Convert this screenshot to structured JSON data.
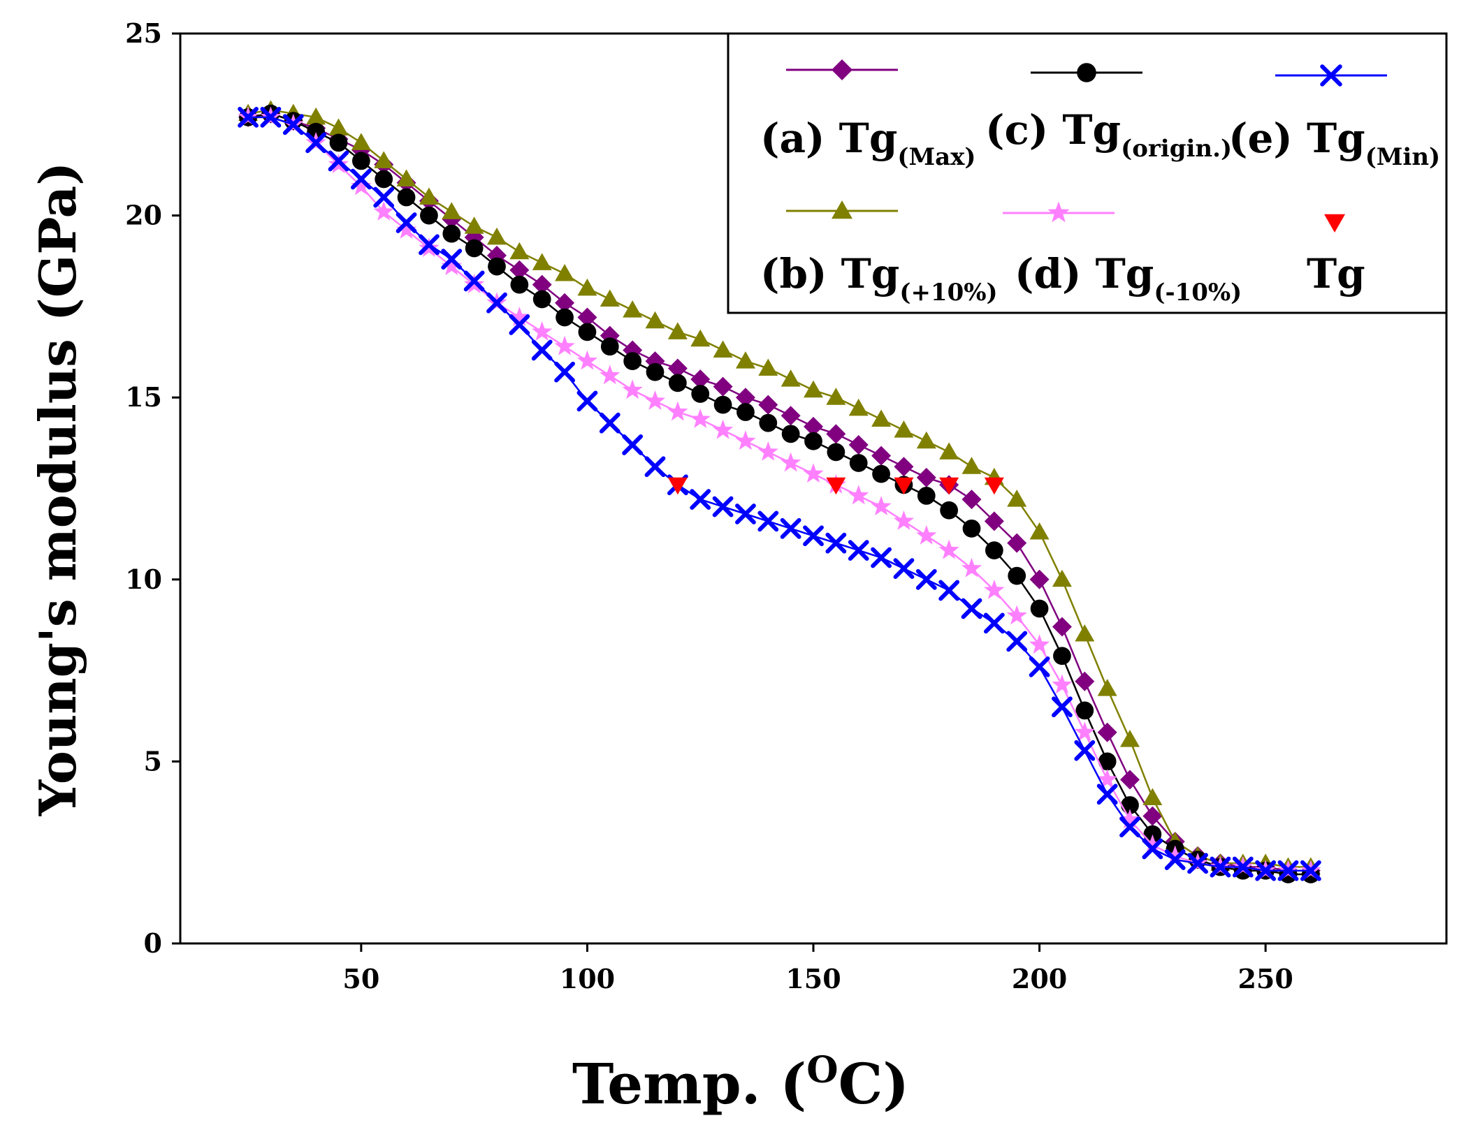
{
  "chart_data": {
    "type": "line",
    "title": "",
    "xlabel_main": "Temp. (",
    "xlabel_sup": "O",
    "xlabel_end": "C)",
    "ylabel": "Young's modulus (GPa)",
    "xlim": [
      10,
      290
    ],
    "ylim": [
      0,
      25
    ],
    "xticks": [
      50,
      100,
      150,
      200,
      250
    ],
    "xtick_labels": [
      "50",
      "100",
      "150",
      "200",
      "250"
    ],
    "yticks": [
      0,
      5,
      10,
      15,
      20,
      25
    ],
    "ytick_labels": [
      "0",
      "5",
      "10",
      "15",
      "20",
      "25"
    ],
    "legend_position": "top-right",
    "series": [
      {
        "name": "(a) Tg(Max)",
        "label_main": "(a) Tg",
        "label_sub": "(Max)",
        "color": "#800080",
        "marker": "diamond",
        "x": [
          25,
          30,
          35,
          40,
          45,
          50,
          55,
          60,
          65,
          70,
          75,
          80,
          85,
          90,
          95,
          100,
          105,
          110,
          115,
          120,
          125,
          130,
          135,
          140,
          145,
          150,
          155,
          160,
          165,
          170,
          175,
          180,
          185,
          190,
          195,
          200,
          205,
          210,
          215,
          220,
          225,
          230,
          235,
          240,
          245,
          250,
          255,
          260
        ],
        "y": [
          22.7,
          22.8,
          22.6,
          22.4,
          22.1,
          21.8,
          21.4,
          20.9,
          20.4,
          19.9,
          19.4,
          18.9,
          18.5,
          18.1,
          17.6,
          17.2,
          16.7,
          16.3,
          16.0,
          15.8,
          15.5,
          15.3,
          15.0,
          14.8,
          14.5,
          14.2,
          14.0,
          13.7,
          13.4,
          13.1,
          12.8,
          12.6,
          12.2,
          11.6,
          11.0,
          10.0,
          8.7,
          7.2,
          5.8,
          4.5,
          3.5,
          2.8,
          2.4,
          2.2,
          2.1,
          2.1,
          2.0,
          2.0
        ]
      },
      {
        "name": "(b) Tg(+10%)",
        "label_main": "(b) Tg",
        "label_sub": "(+10%)",
        "color": "#808000",
        "marker": "triangle-up",
        "x": [
          25,
          30,
          35,
          40,
          45,
          50,
          55,
          60,
          65,
          70,
          75,
          80,
          85,
          90,
          95,
          100,
          105,
          110,
          115,
          120,
          125,
          130,
          135,
          140,
          145,
          150,
          155,
          160,
          165,
          170,
          175,
          180,
          185,
          190,
          195,
          200,
          205,
          210,
          215,
          220,
          225,
          230,
          235,
          240,
          245,
          250,
          255,
          260
        ],
        "y": [
          22.8,
          22.9,
          22.8,
          22.7,
          22.4,
          22.0,
          21.5,
          21.0,
          20.5,
          20.1,
          19.7,
          19.4,
          19.0,
          18.7,
          18.4,
          18.0,
          17.7,
          17.4,
          17.1,
          16.8,
          16.6,
          16.3,
          16.0,
          15.8,
          15.5,
          15.2,
          15.0,
          14.7,
          14.4,
          14.1,
          13.8,
          13.5,
          13.1,
          12.8,
          12.2,
          11.3,
          10.0,
          8.5,
          7.0,
          5.6,
          4.0,
          2.8,
          2.4,
          2.2,
          2.2,
          2.2,
          2.1,
          2.1
        ]
      },
      {
        "name": "(c) Tg(origin.)",
        "label_main": "(c) Tg",
        "label_sub": "(origin.)",
        "color": "#000000",
        "marker": "circle",
        "x": [
          25,
          30,
          35,
          40,
          45,
          50,
          55,
          60,
          65,
          70,
          75,
          80,
          85,
          90,
          95,
          100,
          105,
          110,
          115,
          120,
          125,
          130,
          135,
          140,
          145,
          150,
          155,
          160,
          165,
          170,
          175,
          180,
          185,
          190,
          195,
          200,
          205,
          210,
          215,
          220,
          225,
          230,
          235,
          240,
          245,
          250,
          255,
          260
        ],
        "y": [
          22.7,
          22.8,
          22.6,
          22.3,
          22.0,
          21.5,
          21.0,
          20.5,
          20.0,
          19.5,
          19.1,
          18.6,
          18.1,
          17.7,
          17.2,
          16.8,
          16.4,
          16.0,
          15.7,
          15.4,
          15.1,
          14.8,
          14.6,
          14.3,
          14.0,
          13.8,
          13.5,
          13.2,
          12.9,
          12.6,
          12.3,
          11.9,
          11.4,
          10.8,
          10.1,
          9.2,
          7.9,
          6.4,
          5.0,
          3.8,
          3.0,
          2.6,
          2.3,
          2.1,
          2.0,
          2.0,
          1.9,
          1.9
        ]
      },
      {
        "name": "(d) Tg(-10%)",
        "label_main": "(d) Tg",
        "label_sub": "(-10%)",
        "color": "#ff80ff",
        "marker": "star",
        "x": [
          25,
          30,
          35,
          40,
          45,
          50,
          55,
          60,
          65,
          70,
          75,
          80,
          85,
          90,
          95,
          100,
          105,
          110,
          115,
          120,
          125,
          130,
          135,
          140,
          145,
          150,
          155,
          160,
          165,
          170,
          175,
          180,
          185,
          190,
          195,
          200,
          205,
          210,
          215,
          220,
          225,
          230,
          235,
          240,
          245,
          250,
          255,
          260
        ],
        "y": [
          22.7,
          22.7,
          22.5,
          22.0,
          21.4,
          20.8,
          20.1,
          19.6,
          19.1,
          18.6,
          18.1,
          17.6,
          17.2,
          16.8,
          16.4,
          16.0,
          15.6,
          15.2,
          14.9,
          14.6,
          14.4,
          14.1,
          13.8,
          13.5,
          13.2,
          12.9,
          12.6,
          12.3,
          12.0,
          11.6,
          11.2,
          10.8,
          10.3,
          9.7,
          9.0,
          8.2,
          7.1,
          5.8,
          4.5,
          3.4,
          2.7,
          2.4,
          2.2,
          2.1,
          2.1,
          2.0,
          2.0,
          2.0
        ]
      },
      {
        "name": "(e) Tg(Min)",
        "label_main": "(e) Tg",
        "label_sub": "(Min)",
        "color": "#0000ff",
        "marker": "x",
        "x": [
          25,
          30,
          35,
          40,
          45,
          50,
          55,
          60,
          65,
          70,
          75,
          80,
          85,
          90,
          95,
          100,
          105,
          110,
          115,
          120,
          125,
          130,
          135,
          140,
          145,
          150,
          155,
          160,
          165,
          170,
          175,
          180,
          185,
          190,
          195,
          200,
          205,
          210,
          215,
          220,
          225,
          230,
          235,
          240,
          245,
          250,
          255,
          260
        ],
        "y": [
          22.7,
          22.7,
          22.5,
          22.0,
          21.5,
          21.0,
          20.5,
          19.8,
          19.2,
          18.8,
          18.2,
          17.6,
          17.0,
          16.3,
          15.7,
          14.9,
          14.3,
          13.7,
          13.1,
          12.6,
          12.2,
          12.0,
          11.8,
          11.6,
          11.4,
          11.2,
          11.0,
          10.8,
          10.6,
          10.3,
          10.0,
          9.7,
          9.2,
          8.8,
          8.3,
          7.6,
          6.5,
          5.3,
          4.1,
          3.2,
          2.6,
          2.3,
          2.2,
          2.1,
          2.1,
          2.0,
          2.0,
          2.0
        ]
      },
      {
        "name": "Tg",
        "label_main": "Tg",
        "label_sub": "",
        "color": "#ff0000",
        "marker": "triangle-down",
        "x": [
          120,
          155,
          170,
          180,
          190
        ],
        "y": [
          12.6,
          12.6,
          12.6,
          12.6,
          12.6
        ]
      }
    ]
  }
}
